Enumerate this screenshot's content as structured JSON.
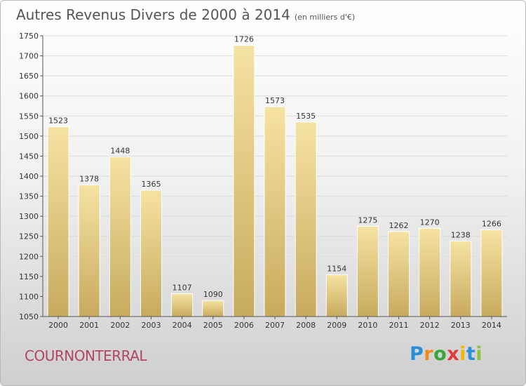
{
  "header": {
    "title": "Autres Revenus Divers de 2000 à 2014",
    "subtitle": "(en milliers d'€)"
  },
  "footer": {
    "commune": "COURNONTERRAL",
    "logo_text": "Proxiti",
    "logo_colors": [
      "#2b8fd6",
      "#f08a1c",
      "#3aa53a",
      "#e23b3b",
      "#f2b705",
      "#2b8fd6",
      "#8bc53f"
    ]
  },
  "colors": {
    "bar_top": "#f5e3a2",
    "bar_bottom": "#c8aa5e",
    "grid": "#dcdcdc",
    "axis": "#555555",
    "text": "#333333"
  },
  "chart_data": {
    "type": "bar",
    "title": "Autres Revenus Divers de 2000 à 2014",
    "subtitle": "(en milliers d'€)",
    "xlabel": "",
    "ylabel": "",
    "categories": [
      "2000",
      "2001",
      "2002",
      "2003",
      "2004",
      "2005",
      "2006",
      "2007",
      "2008",
      "2009",
      "2010",
      "2011",
      "2012",
      "2013",
      "2014"
    ],
    "values": [
      1523,
      1378,
      1448,
      1365,
      1107,
      1090,
      1726,
      1573,
      1535,
      1154,
      1275,
      1262,
      1270,
      1238,
      1266
    ],
    "data_labels": [
      "1523",
      "1378",
      "1448",
      "1365",
      "1107",
      "1090",
      "1726",
      "1573",
      "1535",
      "1154",
      "1275",
      "1262",
      "1270",
      "1238",
      "1266"
    ],
    "ylim": [
      1050,
      1750
    ],
    "yticks": [
      1050,
      1100,
      1150,
      1200,
      1250,
      1300,
      1350,
      1400,
      1450,
      1500,
      1550,
      1600,
      1650,
      1700,
      1750
    ],
    "grid": true,
    "legend": "none"
  }
}
